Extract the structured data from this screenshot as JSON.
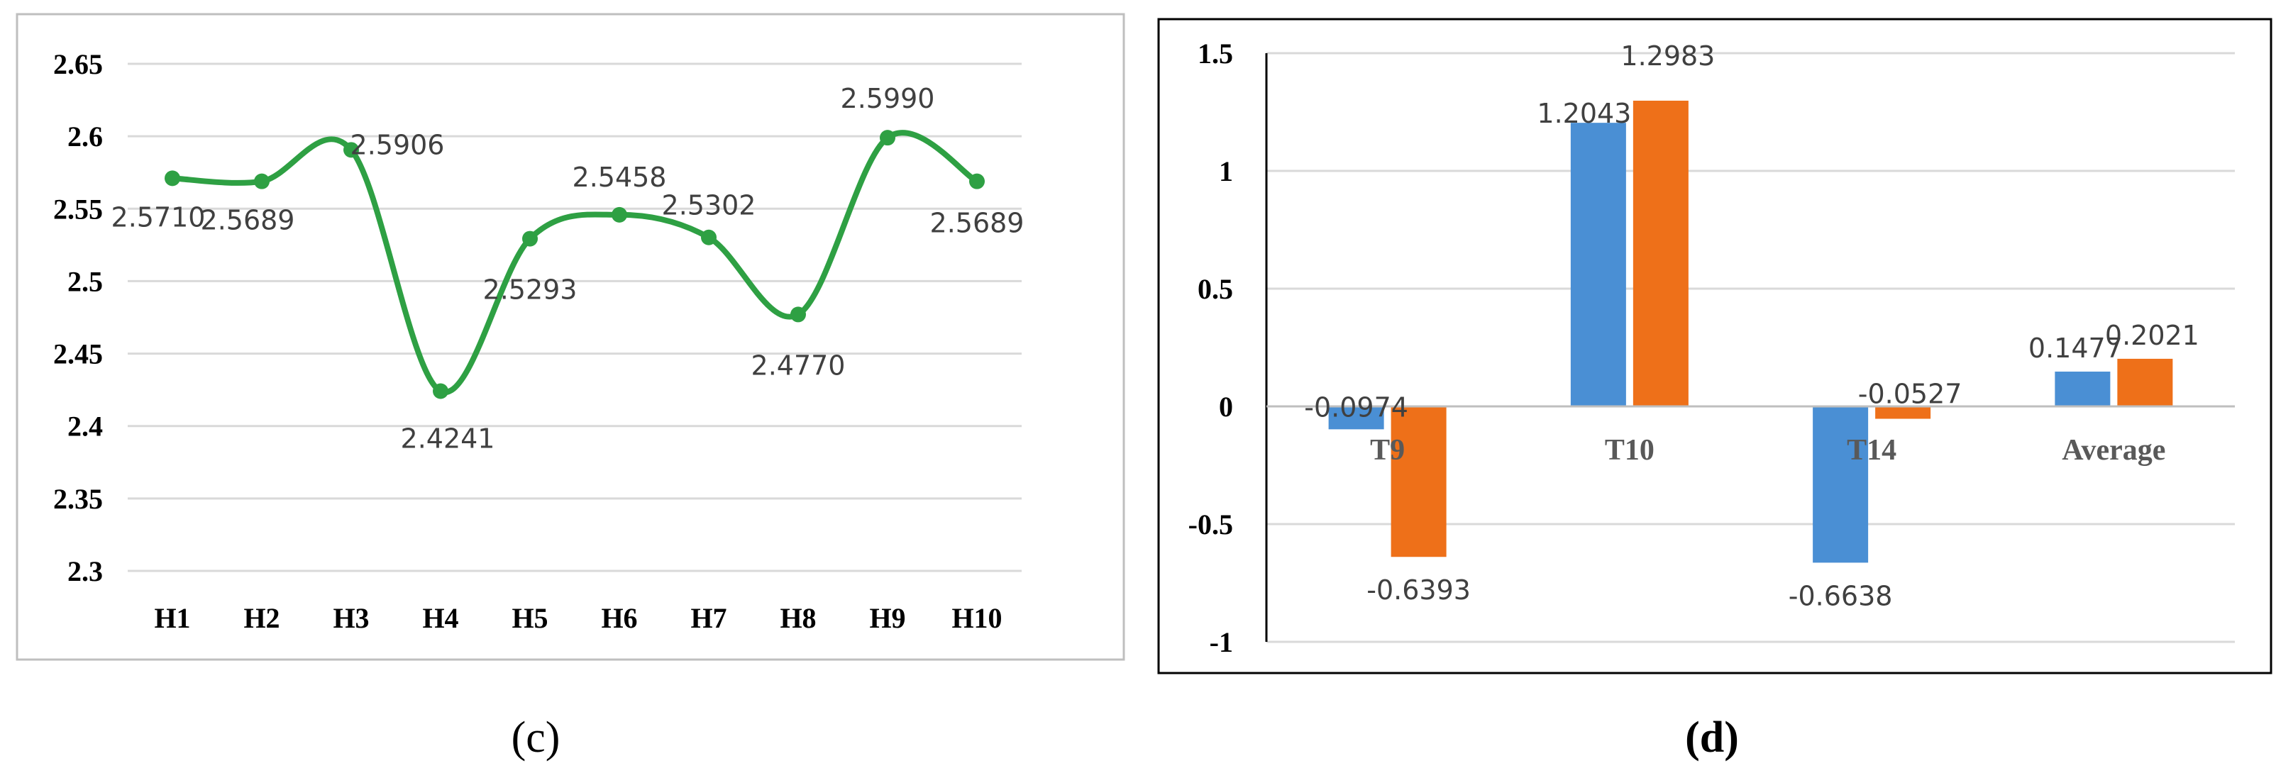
{
  "chart_data": [
    {
      "type": "line",
      "panel_label": "c",
      "categories": [
        "H1",
        "H2",
        "H3",
        "H4",
        "H5",
        "H6",
        "H7",
        "H8",
        "H9",
        "H10"
      ],
      "series": [
        {
          "values": [
            2.571,
            2.5689,
            2.5906,
            2.4241,
            2.5293,
            2.5458,
            2.5302,
            2.477,
            2.599,
            2.5689
          ],
          "labels": [
            "2.5710",
            "2.5689",
            "2.5906",
            "2.4241",
            "2.5293",
            "2.5458",
            "2.5302",
            "2.4770",
            "2.5990",
            "2.5689"
          ],
          "color": "#2ea043",
          "smooth": true,
          "markers": true
        }
      ],
      "y_ticks": [
        "2.65",
        "2.6",
        "2.55",
        "2.5",
        "2.45",
        "2.4",
        "2.35",
        "2.3"
      ],
      "ylim": [
        2.3,
        2.65
      ],
      "grid": true,
      "legend": "none"
    },
    {
      "type": "bar",
      "panel_label": "d",
      "categories": [
        "T9",
        "T10",
        "T14",
        "Average"
      ],
      "series": [
        {
          "values": [
            -0.0974,
            1.2043,
            -0.6638,
            0.1477
          ],
          "labels": [
            "-0.0974",
            "1.2043",
            "-0.6638",
            "0.1477"
          ],
          "color": "#4a8fd4"
        },
        {
          "values": [
            -0.6393,
            1.2983,
            -0.0527,
            0.2021
          ],
          "labels": [
            "-0.6393",
            "1.2983",
            "-0.0527",
            "0.2021"
          ],
          "color": "#ee7019"
        }
      ],
      "y_ticks": [
        "1.5",
        "1",
        "0.5",
        "0",
        "-0.5",
        "-1"
      ],
      "ylim": [
        -1,
        1.5
      ],
      "grid": true,
      "legend": "none"
    }
  ],
  "captions": {
    "c": "(c)",
    "d": "(d)"
  }
}
